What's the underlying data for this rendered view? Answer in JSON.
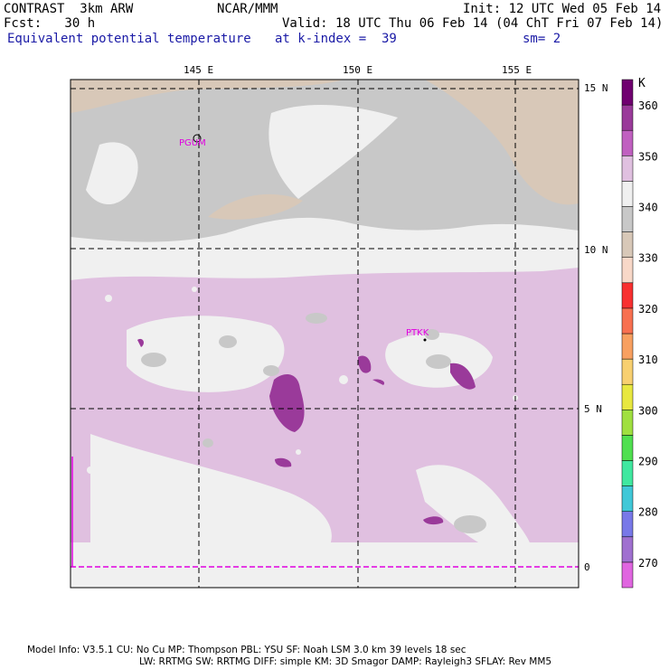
{
  "header": {
    "model": "CONTRAST  3km ARW",
    "org": "NCAR/MMM",
    "init": "Init: 12 UTC Wed 05 Feb 14",
    "fcst": "Fcst:   30 h",
    "valid": "Valid: 18 UTC Thu 06 Feb 14 (04 ChT Fri 07 Feb 14)",
    "field": "Equivalent potential temperature",
    "level": "at k-index =  39",
    "smoothing": "sm= 2"
  },
  "map": {
    "lon_labels": [
      "145 E",
      "150 E",
      "155 E"
    ],
    "lat_labels": [
      "15 N",
      "10 N",
      "5 N",
      "0"
    ],
    "stations": [
      "PGUM",
      "PTKK"
    ]
  },
  "colorbar": {
    "unit": "K",
    "labels": [
      "270",
      "280",
      "290",
      "300",
      "310",
      "320",
      "330",
      "340",
      "350",
      "360"
    ],
    "colors": [
      "#e066e0",
      "#a070d0",
      "#7878e8",
      "#40c8d8",
      "#40e8a0",
      "#50e050",
      "#a0e040",
      "#e8e840",
      "#f8d070",
      "#f8a060",
      "#f87050",
      "#f83030",
      "#f8d8c8",
      "#d8c8b8",
      "#c8c8c8",
      "#f0f0f0",
      "#e0c0e0",
      "#c060c0",
      "#9a3a9a",
      "#700070"
    ]
  },
  "footer": {
    "line1": "Model Info: V3.5.1    CU: No Cu     MP: Thompson     PBL: YSU      SF: Noah LSM    3.0 km   39 levels   18 sec",
    "line2": "LW: RRTMG    SW: RRTMG  DIFF: simple KM: 3D Smagor DAMP: Rayleigh3  SFLAY: Rev MM5"
  }
}
